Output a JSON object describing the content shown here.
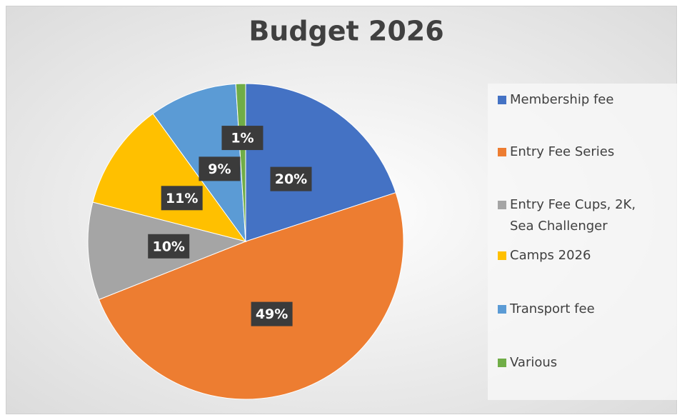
{
  "chart_data": {
    "type": "pie",
    "title": "Budget 2026",
    "categories": [
      "Membership fee",
      "Entry Fee Series",
      "Entry Fee Cups, 2K, Sea Challenger",
      "Camps 2026",
      "Transport fee",
      "Various"
    ],
    "values": [
      20,
      49,
      10,
      11,
      9,
      1
    ],
    "value_labels": [
      "20%",
      "49%",
      "10%",
      "11%",
      "9%",
      "1%"
    ],
    "colors": [
      "#4472c4",
      "#ed7d31",
      "#a5a5a5",
      "#ffc000",
      "#5b9bd5",
      "#70ad47"
    ],
    "legend": "right"
  }
}
